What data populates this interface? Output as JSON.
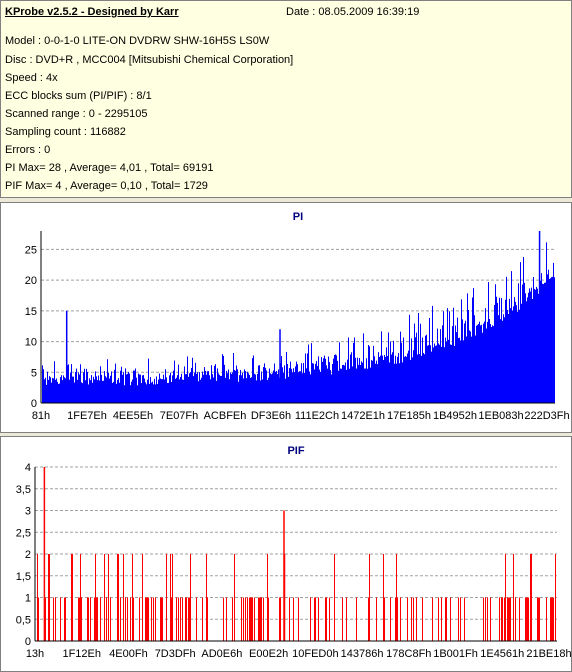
{
  "info": {
    "title": "KProbe v2.5.2 - Designed by Karr",
    "date": "Date : 08.05.2009 16:39:19",
    "lines": [
      "Model : 0-0-1-0 LITE-ON DVDRW SHW-16H5S  LS0W",
      "Disc : DVD+R , MCC004 [Mitsubishi Chemical Corporation]",
      "Speed : 4x",
      "ECC blocks sum (PI/PIF) : 8/1",
      "Scanned range : 0 - 2295105",
      "Sampling count : 116882",
      "Errors : 0",
      "PI Max= 28 , Average= 4,01 , Total= 69191",
      "PIF Max= 4 , Average= 0,10 , Total= 1729"
    ]
  },
  "colors": {
    "pi": "#0000ff",
    "pif": "#ff0000",
    "title": "#000080",
    "grid": "#a0a0a0"
  },
  "chart_data": [
    {
      "type": "bar",
      "title": "PI",
      "ylim": [
        0,
        28
      ],
      "yticks": [
        "0",
        "5",
        "10",
        "15",
        "20",
        "25"
      ],
      "ytick_values": [
        0,
        5,
        10,
        15,
        20,
        25
      ],
      "x_tick_labels": [
        "81h",
        "1FE7Eh",
        "4EE5Eh",
        "7E07Fh",
        "ACBFEh",
        "DF3E6h",
        "111E2Ch",
        "1472E1h",
        "17E185h",
        "1B4952h",
        "1EB083h",
        "222D3Fh"
      ],
      "grid": true,
      "series": [
        {
          "profile": [
            [
              0.0,
              3.5,
              2.5,
              7.5
            ],
            [
              0.1,
              3.8,
              2.5,
              7.5
            ],
            [
              0.2,
              3.8,
              2.5,
              7.5
            ],
            [
              0.3,
              4.2,
              2.5,
              8.0
            ],
            [
              0.4,
              4.5,
              3.0,
              8.5
            ],
            [
              0.5,
              5.0,
              3.5,
              9.5
            ],
            [
              0.6,
              6.0,
              4.0,
              11.0
            ],
            [
              0.7,
              7.5,
              5.0,
              14.0
            ],
            [
              0.8,
              10.0,
              6.0,
              17.0
            ],
            [
              0.9,
              14.0,
              8.0,
              22.0
            ],
            [
              1.0,
              21.0,
              14.0,
              28.0
            ]
          ],
          "spikes": [
            {
              "x": 0.05,
              "y": 15
            },
            {
              "x": 0.465,
              "y": 12
            },
            {
              "x": 0.97,
              "y": 28
            }
          ]
        }
      ]
    },
    {
      "type": "bar",
      "title": "PIF",
      "ylim": [
        0,
        4
      ],
      "yticks": [
        "0",
        "0,5",
        "1",
        "1,5",
        "2",
        "2,5",
        "3",
        "3,5",
        "4"
      ],
      "ytick_values": [
        0,
        0.5,
        1,
        1.5,
        2,
        2.5,
        3,
        3.5,
        4
      ],
      "x_tick_labels": [
        "13h",
        "1F12Eh",
        "4E00Fh",
        "7D3DFh",
        "AD0E6h",
        "E00E2h",
        "10FED0h",
        "143786h",
        "178C8Fh",
        "1B001Fh",
        "1E4561h",
        "21BE18h"
      ],
      "grid": true,
      "series": [
        {
          "density": [
            [
              0.0,
              0.55,
              0.45
            ],
            [
              0.2,
              0.4,
              0.2
            ],
            [
              0.4,
              0.25,
              0.05
            ],
            [
              0.46,
              0.35,
              0.15
            ],
            [
              0.5,
              0.2,
              0.02
            ],
            [
              0.8,
              0.2,
              0.02
            ],
            [
              0.9,
              0.25,
              0.04
            ],
            [
              0.95,
              0.5,
              0.2
            ],
            [
              1.0,
              0.6,
              0.3
            ]
          ],
          "spikes": [
            {
              "x": 0.018,
              "y": 4
            },
            {
              "x": 0.477,
              "y": 3
            },
            {
              "x": 0.478,
              "y": 2
            }
          ]
        }
      ]
    }
  ]
}
